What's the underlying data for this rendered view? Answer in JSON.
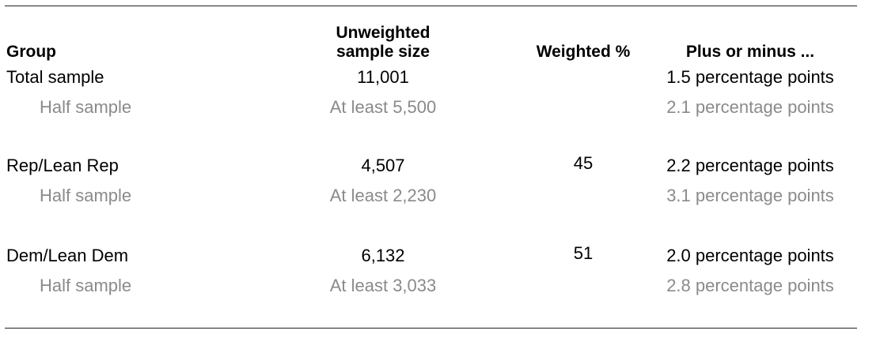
{
  "table": {
    "headers": {
      "group": "Group",
      "unweighted_line1": "Unweighted",
      "unweighted_line2": "sample size",
      "weighted": "Weighted %",
      "plus_minus": "Plus or minus ..."
    },
    "rows": [
      {
        "group": "Total sample",
        "n": "11,001",
        "weighted": "",
        "moe": "1.5 percentage points",
        "half_label": "Half sample",
        "half_n": "At least 5,500",
        "half_moe": "2.1 percentage points"
      },
      {
        "group": "Rep/Lean Rep",
        "n": "4,507",
        "weighted": "45",
        "moe": "2.2 percentage points",
        "half_label": "Half sample",
        "half_n": "At least 2,230",
        "half_moe": "3.1 percentage points"
      },
      {
        "group": "Dem/Lean Dem",
        "n": "6,132",
        "weighted": "51",
        "moe": "2.0 percentage points",
        "half_label": "Half sample",
        "half_n": "At least 3,033",
        "half_moe": "2.8 percentage points"
      }
    ]
  },
  "colors": {
    "main_text": "#000000",
    "sub_text": "#8a8a8a",
    "rule": "#222222"
  }
}
